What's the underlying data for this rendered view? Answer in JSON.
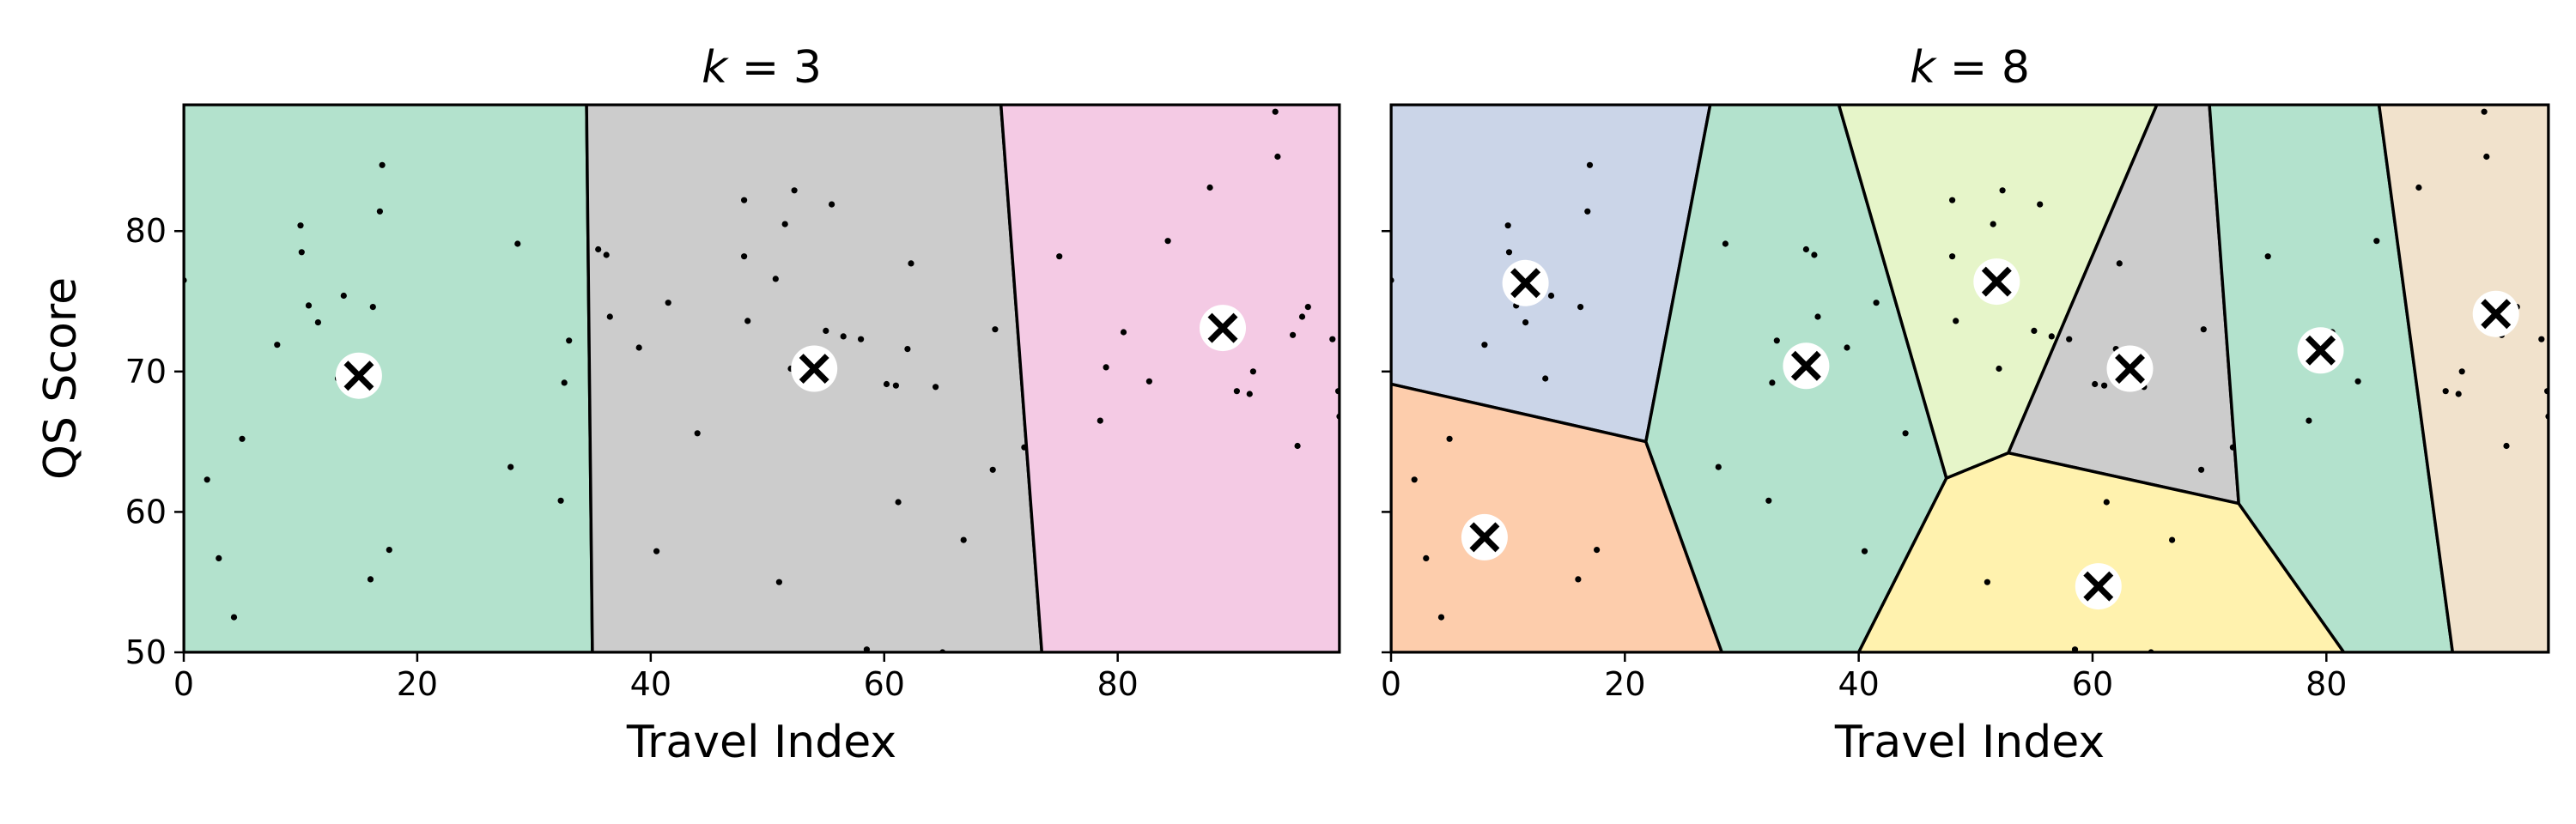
{
  "colors": {
    "green": "#b3e2cd",
    "gray": "#cccccc",
    "pink": "#f4cae4",
    "blue": "#cbd5e8",
    "orange": "#fdcdac",
    "lime": "#e6f5c9",
    "yellow": "#fff2ae",
    "tan": "#f1e2cc"
  },
  "chart_data": [
    {
      "type": "scatter",
      "title_prefix": "k",
      "title_eq": " = ",
      "title_value": "3",
      "xlabel": "Travel Index",
      "ylabel": "QS Score",
      "xlim": [
        0,
        99
      ],
      "ylim": [
        50,
        89
      ],
      "xticks": [
        0,
        20,
        40,
        60,
        80
      ],
      "yticks": [
        50,
        60,
        70,
        80
      ],
      "centroids": [
        [
          15,
          69.7
        ],
        [
          54,
          70.2
        ],
        [
          89,
          73.1
        ]
      ],
      "regions": [
        {
          "color": "green",
          "polygon": [
            [
              0,
              50
            ],
            [
              35,
              50
            ],
            [
              34.5,
              89
            ],
            [
              0,
              89
            ]
          ]
        },
        {
          "color": "gray",
          "polygon": [
            [
              35,
              50
            ],
            [
              73.5,
              50
            ],
            [
              70,
              89
            ],
            [
              34.5,
              89
            ]
          ]
        },
        {
          "color": "pink",
          "polygon": [
            [
              73.5,
              50
            ],
            [
              99,
              50
            ],
            [
              99,
              89
            ],
            [
              70,
              89
            ]
          ]
        }
      ]
    },
    {
      "type": "scatter",
      "title_prefix": "k",
      "title_eq": " = ",
      "title_value": "8",
      "xlabel": "Travel Index",
      "ylabel": "",
      "xlim": [
        0,
        99
      ],
      "ylim": [
        50,
        89
      ],
      "xticks": [
        0,
        20,
        40,
        60,
        80
      ],
      "yticks": [
        50,
        60,
        70,
        80
      ],
      "centroids": [
        [
          11.5,
          76.3
        ],
        [
          35.5,
          70.4
        ],
        [
          51.8,
          76.4
        ],
        [
          63.2,
          70.2
        ],
        [
          79.5,
          71.5
        ],
        [
          94.5,
          74.1
        ],
        [
          8,
          58.2
        ],
        [
          60.5,
          54.7
        ]
      ],
      "regions": [
        {
          "color": "blue",
          "polygon": [
            [
              0,
              89
            ],
            [
              27.3,
              89
            ],
            [
              21.8,
              65
            ],
            [
              0,
              69.1
            ]
          ]
        },
        {
          "color": "orange",
          "polygon": [
            [
              0,
              69.1
            ],
            [
              21.8,
              65
            ],
            [
              28.3,
              50
            ],
            [
              0,
              50
            ]
          ]
        },
        {
          "color": "green",
          "polygon": [
            [
              27.3,
              89
            ],
            [
              38.3,
              89
            ],
            [
              47.5,
              62.4
            ],
            [
              40,
              50
            ],
            [
              28.3,
              50
            ],
            [
              21.8,
              65
            ]
          ]
        },
        {
          "color": "lime",
          "polygon": [
            [
              38.3,
              89
            ],
            [
              65.5,
              89
            ],
            [
              52.8,
              64.2
            ],
            [
              47.5,
              62.4
            ]
          ]
        },
        {
          "color": "gray",
          "polygon": [
            [
              65.5,
              89
            ],
            [
              70,
              89
            ],
            [
              72.5,
              60.6
            ],
            [
              52.8,
              64.2
            ]
          ]
        },
        {
          "color": "yellow",
          "polygon": [
            [
              47.5,
              62.4
            ],
            [
              52.8,
              64.2
            ],
            [
              72.5,
              60.6
            ],
            [
              81.5,
              50
            ],
            [
              40,
              50
            ]
          ]
        },
        {
          "color": "green",
          "polygon": [
            [
              70,
              89
            ],
            [
              84.5,
              89
            ],
            [
              90.8,
              50
            ],
            [
              81.5,
              50
            ],
            [
              72.5,
              60.6
            ]
          ]
        },
        {
          "color": "tan",
          "polygon": [
            [
              84.5,
              89
            ],
            [
              99,
              89
            ],
            [
              99,
              50
            ],
            [
              90.8,
              50
            ]
          ]
        }
      ]
    }
  ],
  "points": [
    [
      0,
      76.5
    ],
    [
      2,
      62.3
    ],
    [
      3,
      56.7
    ],
    [
      4.3,
      52.5
    ],
    [
      5,
      65.2
    ],
    [
      8,
      71.9
    ],
    [
      10,
      80.4
    ],
    [
      10.1,
      78.5
    ],
    [
      10.7,
      74.7
    ],
    [
      11.5,
      73.5
    ],
    [
      13.2,
      69.5
    ],
    [
      13.7,
      75.4
    ],
    [
      16,
      55.2
    ],
    [
      16.2,
      74.6
    ],
    [
      16.8,
      81.4
    ],
    [
      17,
      84.7
    ],
    [
      17.6,
      57.3
    ],
    [
      28,
      63.2
    ],
    [
      28.6,
      79.1
    ],
    [
      32.3,
      60.8
    ],
    [
      32.6,
      69.2
    ],
    [
      33,
      72.2
    ],
    [
      35.5,
      78.7
    ],
    [
      36.2,
      78.3
    ],
    [
      36.5,
      73.9
    ],
    [
      39,
      71.7
    ],
    [
      40.5,
      57.2
    ],
    [
      41.5,
      74.9
    ],
    [
      44,
      65.6
    ],
    [
      48,
      82.2
    ],
    [
      48,
      78.2
    ],
    [
      48.3,
      73.6
    ],
    [
      50.7,
      76.6
    ],
    [
      51,
      55
    ],
    [
      51.5,
      80.5
    ],
    [
      52,
      70.2
    ],
    [
      52.3,
      82.9
    ],
    [
      55,
      72.9
    ],
    [
      55.5,
      81.9
    ],
    [
      56.5,
      72.5
    ],
    [
      58,
      72.3
    ],
    [
      58.5,
      50.2
    ],
    [
      60.2,
      69.1
    ],
    [
      61,
      69
    ],
    [
      61.2,
      60.7
    ],
    [
      62,
      71.6
    ],
    [
      62.3,
      77.7
    ],
    [
      64.4,
      68.9
    ],
    [
      65,
      50
    ],
    [
      66.8,
      58
    ],
    [
      69.3,
      63
    ],
    [
      69.5,
      73
    ],
    [
      72,
      64.6
    ],
    [
      75,
      78.2
    ],
    [
      78.5,
      66.5
    ],
    [
      79,
      70.3
    ],
    [
      80.5,
      72.8
    ],
    [
      82.7,
      69.3
    ],
    [
      84.3,
      79.3
    ],
    [
      87.9,
      83.1
    ],
    [
      90.2,
      68.6
    ],
    [
      91.6,
      70
    ],
    [
      93.5,
      88.5
    ],
    [
      93.7,
      85.3
    ],
    [
      95,
      72.6
    ],
    [
      95.4,
      64.7
    ],
    [
      95.8,
      73.9
    ],
    [
      96.3,
      74.6
    ],
    [
      98.4,
      72.3
    ],
    [
      98.9,
      68.6
    ],
    [
      99,
      66.8
    ],
    [
      91.3,
      68.4
    ]
  ]
}
